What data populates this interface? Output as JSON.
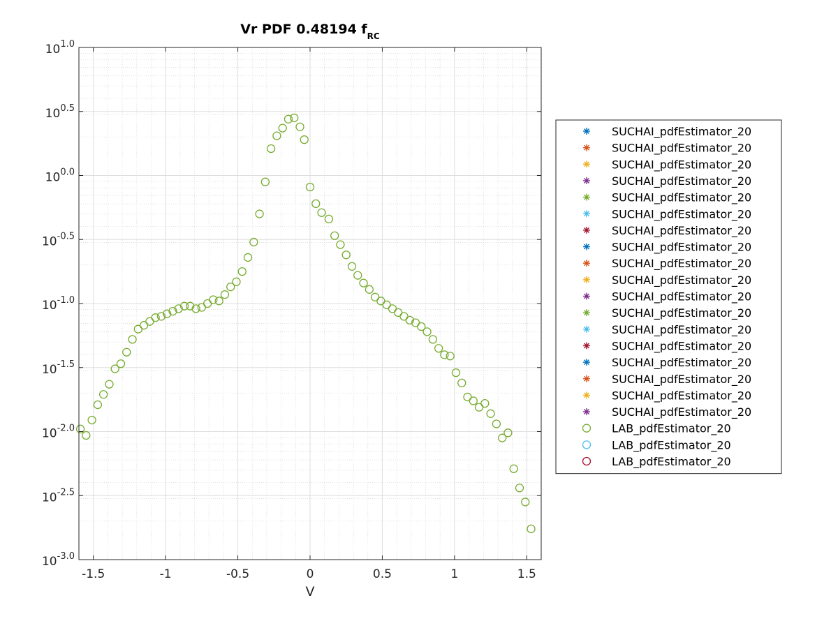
{
  "chart_data": {
    "type": "scatter",
    "title": "Vr PDF 0.48194 f",
    "title_subscript": "RC",
    "xlabel": "V",
    "ylabel": "",
    "xlim": [
      -1.6,
      1.6
    ],
    "ylim_log10": [
      -3.0,
      1.0
    ],
    "yscale": "log",
    "grid": true,
    "minor_grid": true,
    "legend_placement": "outside-right",
    "x_ticks": [
      -1.5,
      -1,
      -0.5,
      0,
      0.5,
      1,
      1.5
    ],
    "x_tick_labels": [
      "-1.5",
      "-1",
      "-0.5",
      "0",
      "0.5",
      "1",
      "1.5"
    ],
    "y_tick_exponents": [
      -3.0,
      -2.5,
      -2.0,
      -1.5,
      -1.0,
      -0.5,
      0.0,
      0.5,
      1.0
    ],
    "y_tick_exponent_labels": [
      "-3.0",
      "-2.5",
      "-2.0",
      "-1.5",
      "-1.0",
      "-0.5",
      "0.0",
      "0.5",
      "1.0"
    ],
    "y_tick_base": "10",
    "series": [
      {
        "name": "SUCHAI_pdfEstimator_20",
        "marker": "asterisk",
        "color": "#0072BD"
      },
      {
        "name": "SUCHAI_pdfEstimator_20",
        "marker": "asterisk",
        "color": "#D95319"
      },
      {
        "name": "SUCHAI_pdfEstimator_20",
        "marker": "asterisk",
        "color": "#EDB120"
      },
      {
        "name": "SUCHAI_pdfEstimator_20",
        "marker": "asterisk",
        "color": "#7E2F8E"
      },
      {
        "name": "SUCHAI_pdfEstimator_20",
        "marker": "asterisk",
        "color": "#77AC30"
      },
      {
        "name": "SUCHAI_pdfEstimator_20",
        "marker": "asterisk",
        "color": "#4DBEEE"
      },
      {
        "name": "SUCHAI_pdfEstimator_20",
        "marker": "asterisk",
        "color": "#A2142F"
      },
      {
        "name": "SUCHAI_pdfEstimator_20",
        "marker": "asterisk",
        "color": "#0072BD"
      },
      {
        "name": "SUCHAI_pdfEstimator_20",
        "marker": "asterisk",
        "color": "#D95319"
      },
      {
        "name": "SUCHAI_pdfEstimator_20",
        "marker": "asterisk",
        "color": "#EDB120"
      },
      {
        "name": "SUCHAI_pdfEstimator_20",
        "marker": "asterisk",
        "color": "#7E2F8E"
      },
      {
        "name": "SUCHAI_pdfEstimator_20",
        "marker": "asterisk",
        "color": "#77AC30"
      },
      {
        "name": "SUCHAI_pdfEstimator_20",
        "marker": "asterisk",
        "color": "#4DBEEE"
      },
      {
        "name": "SUCHAI_pdfEstimator_20",
        "marker": "asterisk",
        "color": "#A2142F"
      },
      {
        "name": "SUCHAI_pdfEstimator_20",
        "marker": "asterisk",
        "color": "#0072BD"
      },
      {
        "name": "SUCHAI_pdfEstimator_20",
        "marker": "asterisk",
        "color": "#D95319"
      },
      {
        "name": "SUCHAI_pdfEstimator_20",
        "marker": "asterisk",
        "color": "#EDB120"
      },
      {
        "name": "SUCHAI_pdfEstimator_20",
        "marker": "asterisk",
        "color": "#7E2F8E"
      },
      {
        "name": "LAB_pdfEstimator_20",
        "marker": "circle",
        "color": "#77AC30",
        "points_log10": [
          [
            -1.59,
            -1.98
          ],
          [
            -1.55,
            -2.03
          ],
          [
            -1.51,
            -1.91
          ],
          [
            -1.47,
            -1.79
          ],
          [
            -1.43,
            -1.71
          ],
          [
            -1.39,
            -1.63
          ],
          [
            -1.35,
            -1.51
          ],
          [
            -1.31,
            -1.47
          ],
          [
            -1.27,
            -1.38
          ],
          [
            -1.23,
            -1.28
          ],
          [
            -1.19,
            -1.2
          ],
          [
            -1.15,
            -1.17
          ],
          [
            -1.11,
            -1.14
          ],
          [
            -1.07,
            -1.11
          ],
          [
            -1.03,
            -1.1
          ],
          [
            -0.99,
            -1.08
          ],
          [
            -0.95,
            -1.06
          ],
          [
            -0.91,
            -1.04
          ],
          [
            -0.87,
            -1.02
          ],
          [
            -0.83,
            -1.02
          ],
          [
            -0.79,
            -1.04
          ],
          [
            -0.75,
            -1.03
          ],
          [
            -0.71,
            -1.0
          ],
          [
            -0.67,
            -0.97
          ],
          [
            -0.63,
            -0.98
          ],
          [
            -0.59,
            -0.93
          ],
          [
            -0.55,
            -0.87
          ],
          [
            -0.51,
            -0.83
          ],
          [
            -0.47,
            -0.75
          ],
          [
            -0.43,
            -0.64
          ],
          [
            -0.39,
            -0.52
          ],
          [
            -0.35,
            -0.3
          ],
          [
            -0.31,
            -0.05
          ],
          [
            -0.27,
            0.21
          ],
          [
            -0.23,
            0.31
          ],
          [
            -0.19,
            0.37
          ],
          [
            -0.15,
            0.44
          ],
          [
            -0.11,
            0.45
          ],
          [
            -0.07,
            0.38
          ],
          [
            -0.04,
            0.28
          ],
          [
            0.0,
            -0.09
          ],
          [
            0.04,
            -0.22
          ],
          [
            0.08,
            -0.29
          ],
          [
            0.13,
            -0.34
          ],
          [
            0.17,
            -0.47
          ],
          [
            0.21,
            -0.54
          ],
          [
            0.25,
            -0.62
          ],
          [
            0.29,
            -0.71
          ],
          [
            0.33,
            -0.78
          ],
          [
            0.37,
            -0.84
          ],
          [
            0.41,
            -0.89
          ],
          [
            0.45,
            -0.95
          ],
          [
            0.49,
            -0.98
          ],
          [
            0.53,
            -1.01
          ],
          [
            0.57,
            -1.04
          ],
          [
            0.61,
            -1.07
          ],
          [
            0.65,
            -1.1
          ],
          [
            0.69,
            -1.13
          ],
          [
            0.73,
            -1.15
          ],
          [
            0.77,
            -1.18
          ],
          [
            0.81,
            -1.22
          ],
          [
            0.85,
            -1.28
          ],
          [
            0.89,
            -1.35
          ],
          [
            0.93,
            -1.4
          ],
          [
            0.97,
            -1.41
          ],
          [
            1.01,
            -1.54
          ],
          [
            1.05,
            -1.62
          ],
          [
            1.09,
            -1.73
          ],
          [
            1.13,
            -1.76
          ],
          [
            1.17,
            -1.81
          ],
          [
            1.21,
            -1.78
          ],
          [
            1.25,
            -1.86
          ],
          [
            1.29,
            -1.94
          ],
          [
            1.33,
            -2.05
          ],
          [
            1.37,
            -2.01
          ],
          [
            1.41,
            -2.29
          ],
          [
            1.45,
            -2.44
          ],
          [
            1.49,
            -2.55
          ],
          [
            1.53,
            -2.76
          ]
        ]
      },
      {
        "name": "LAB_pdfEstimator_20",
        "marker": "circle",
        "color": "#4DBEEE"
      },
      {
        "name": "LAB_pdfEstimator_20",
        "marker": "circle",
        "color": "#A2142F"
      }
    ]
  }
}
